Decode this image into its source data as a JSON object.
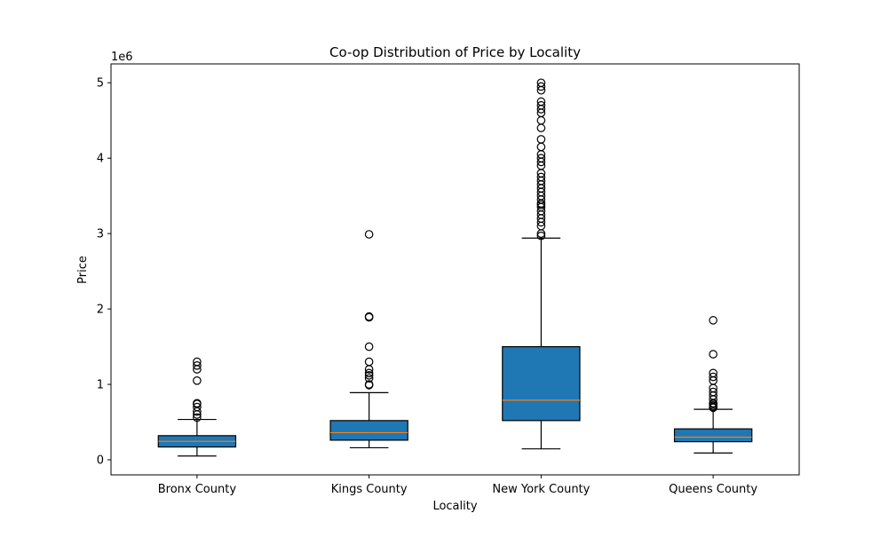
{
  "chart_data": {
    "type": "box",
    "title": "Co-op Distribution of Price by Locality",
    "xlabel": "Locality",
    "ylabel": "Price",
    "y_offset_label": "1e6",
    "ylim": [
      -0.2,
      5.25
    ],
    "yticks": [
      0,
      1,
      2,
      3,
      4,
      5
    ],
    "yticks_labels": [
      "0",
      "1",
      "2",
      "3",
      "4",
      "5"
    ],
    "y_unit_scale": 1000000,
    "grid": false,
    "box_color": "#1f77b4",
    "median_color": "#ff7f0e",
    "categories": [
      "Bronx County",
      "Kings County",
      "New York County",
      "Queens County"
    ],
    "boxes": [
      {
        "category": "Bronx County",
        "whisker_low": 0.05,
        "q1": 0.17,
        "median": 0.245,
        "q3": 0.32,
        "whisker_high": 0.535,
        "outliers": [
          0.56,
          0.6,
          0.64,
          0.7,
          0.74,
          0.75,
          1.05,
          1.2,
          1.25,
          1.3
        ]
      },
      {
        "category": "Kings County",
        "whisker_low": 0.16,
        "q1": 0.26,
        "median": 0.36,
        "q3": 0.52,
        "whisker_high": 0.89,
        "outliers": [
          0.99,
          1.0,
          1.08,
          1.12,
          1.15,
          1.2,
          1.3,
          1.5,
          1.89,
          1.9,
          2.99
        ]
      },
      {
        "category": "New York County",
        "whisker_low": 0.145,
        "q1": 0.52,
        "median": 0.79,
        "q3": 1.5,
        "whisker_high": 2.94,
        "outliers": [
          2.97,
          3.0,
          3.1,
          3.15,
          3.2,
          3.25,
          3.3,
          3.35,
          3.38,
          3.4,
          3.45,
          3.5,
          3.55,
          3.6,
          3.65,
          3.7,
          3.75,
          3.8,
          3.9,
          3.95,
          4.0,
          4.05,
          4.15,
          4.25,
          4.4,
          4.5,
          4.6,
          4.65,
          4.7,
          4.75,
          4.9,
          4.95,
          5.0
        ]
      },
      {
        "category": "Queens County",
        "whisker_low": 0.09,
        "q1": 0.24,
        "median": 0.3,
        "q3": 0.41,
        "whisker_high": 0.67,
        "outliers": [
          0.69,
          0.7,
          0.72,
          0.74,
          0.75,
          0.8,
          0.85,
          0.9,
          0.95,
          1.05,
          1.1,
          1.15,
          1.4,
          1.85
        ]
      }
    ]
  }
}
